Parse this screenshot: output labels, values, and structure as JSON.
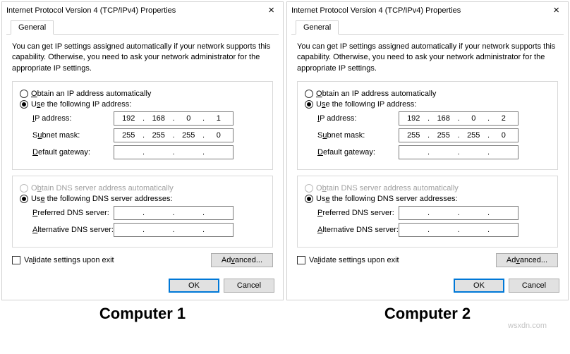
{
  "dialogs": [
    {
      "title": "Internet Protocol Version 4 (TCP/IPv4) Properties",
      "tab": "General",
      "explain": "You can get IP settings assigned automatically if your network supports this capability. Otherwise, you need to ask your network administrator for the appropriate IP settings.",
      "ip_section": {
        "auto_label": "Obtain an IP address automatically",
        "auto_ul": "O",
        "manual_label": "Use the following IP address:",
        "manual_ul": "S",
        "selected": "manual",
        "fields": {
          "ip_label": "IP address:",
          "ip_ul": "I",
          "ip": [
            "192",
            "168",
            "0",
            "1"
          ],
          "mask_label": "Subnet mask:",
          "mask_ul": "U",
          "mask": [
            "255",
            "255",
            "255",
            "0"
          ],
          "gw_label": "Default gateway:",
          "gw_ul": "D",
          "gw": [
            "",
            "",
            "",
            ""
          ]
        }
      },
      "dns_section": {
        "auto_label": "Obtain DNS server address automatically",
        "auto_ul": "b",
        "manual_label": "Use the following DNS server addresses:",
        "manual_ul": "E",
        "selected": "manual",
        "auto_disabled": true,
        "fields": {
          "pref_label": "Preferred DNS server:",
          "pref_ul": "P",
          "pref": [
            "",
            "",
            "",
            ""
          ],
          "alt_label": "Alternative DNS server:",
          "alt_ul": "A",
          "alt": [
            "",
            "",
            "",
            ""
          ]
        }
      },
      "validate_label": "Validate settings upon exit",
      "validate_ul": "L",
      "advanced_label": "Advanced...",
      "advanced_ul": "V",
      "ok_label": "OK",
      "cancel_label": "Cancel",
      "caption": "Computer 1"
    },
    {
      "title": "Internet Protocol Version 4 (TCP/IPv4) Properties",
      "tab": "General",
      "explain": "You can get IP settings assigned automatically if your network supports this capability. Otherwise, you need to ask your network administrator for the appropriate IP settings.",
      "ip_section": {
        "auto_label": "Obtain an IP address automatically",
        "auto_ul": "O",
        "manual_label": "Use the following IP address:",
        "manual_ul": "S",
        "selected": "manual",
        "fields": {
          "ip_label": "IP address:",
          "ip_ul": "I",
          "ip": [
            "192",
            "168",
            "0",
            "2"
          ],
          "mask_label": "Subnet mask:",
          "mask_ul": "U",
          "mask": [
            "255",
            "255",
            "255",
            "0"
          ],
          "gw_label": "Default gateway:",
          "gw_ul": "D",
          "gw": [
            "",
            "",
            "",
            ""
          ]
        }
      },
      "dns_section": {
        "auto_label": "Obtain DNS server address automatically",
        "auto_ul": "b",
        "manual_label": "Use the following DNS server addresses:",
        "manual_ul": "E",
        "selected": "manual",
        "auto_disabled": true,
        "fields": {
          "pref_label": "Preferred DNS server:",
          "pref_ul": "P",
          "pref": [
            "",
            "",
            "",
            ""
          ],
          "alt_label": "Alternative DNS server:",
          "alt_ul": "A",
          "alt": [
            "",
            "",
            "",
            ""
          ]
        }
      },
      "validate_label": "Validate settings upon exit",
      "validate_ul": "L",
      "advanced_label": "Advanced...",
      "advanced_ul": "V",
      "ok_label": "OK",
      "cancel_label": "Cancel",
      "caption": "Computer 2"
    }
  ],
  "watermark": "wsxdn.com",
  "colors": {
    "border": "#d0d0d0",
    "field_border": "#7a7a7a",
    "button_bg": "#e1e1e1",
    "button_border": "#adadad",
    "primary_border": "#0078d7",
    "disabled_text": "#a0a0a0"
  }
}
